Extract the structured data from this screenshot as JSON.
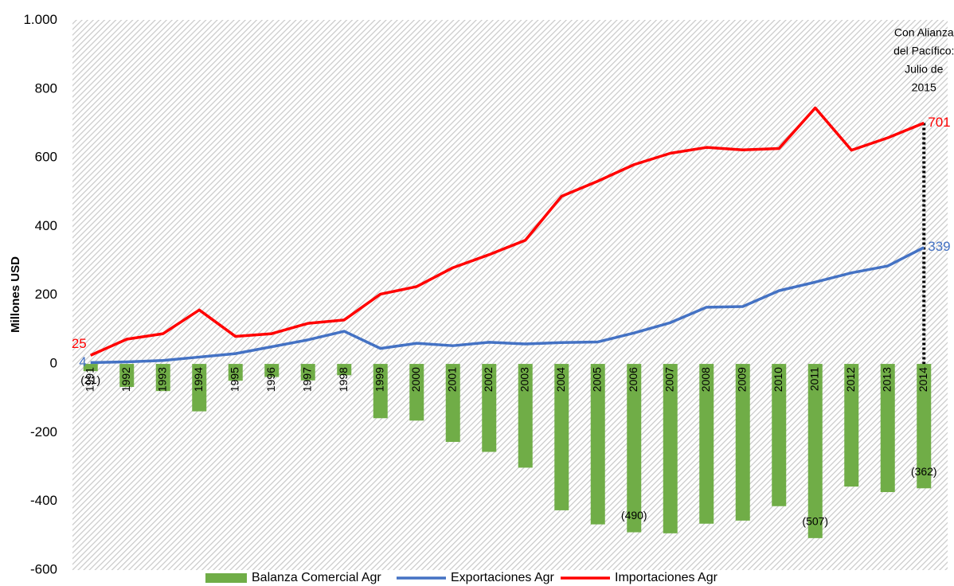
{
  "chart_data": {
    "type": "bar_line",
    "y_label": "Millones USD",
    "categories": [
      "1991",
      "1992",
      "1993",
      "1994",
      "1995",
      "1996",
      "1997",
      "1998",
      "1999",
      "2000",
      "2001",
      "2002",
      "2003",
      "2004",
      "2005",
      "2006",
      "2007",
      "2008",
      "2009",
      "2010",
      "2011",
      "2012",
      "2013",
      "2014"
    ],
    "series": [
      {
        "name": "Balanza Comercial Agr",
        "kind": "bar",
        "color": "#70ad47",
        "values": [
          -21,
          -67,
          -79,
          -138,
          -49,
          -38,
          -48,
          -33,
          -158,
          -165,
          -227,
          -256,
          -302,
          -426,
          -467,
          -490,
          -493,
          -465,
          -456,
          -414,
          -507,
          -357,
          -373,
          -362
        ],
        "value_labels": [
          "(21)",
          null,
          null,
          null,
          null,
          null,
          null,
          null,
          null,
          null,
          null,
          null,
          null,
          null,
          null,
          "(490)",
          null,
          null,
          null,
          null,
          "(507)",
          null,
          null,
          "(362)"
        ]
      },
      {
        "name": "Exportaciones Agr",
        "kind": "line",
        "color": "#4472c4",
        "values": [
          4,
          6,
          10,
          20,
          30,
          50,
          70,
          95,
          45,
          60,
          53,
          63,
          58,
          62,
          64,
          90,
          120,
          165,
          167,
          213,
          238,
          265,
          285,
          339
        ],
        "value_labels": [
          "4",
          null,
          null,
          null,
          null,
          null,
          null,
          null,
          null,
          null,
          null,
          null,
          null,
          null,
          null,
          null,
          null,
          null,
          null,
          null,
          null,
          null,
          null,
          "339"
        ]
      },
      {
        "name": "Importaciones Agr",
        "kind": "line",
        "color": "#ff0000",
        "values": [
          25,
          72,
          88,
          157,
          80,
          88,
          118,
          128,
          203,
          225,
          280,
          318,
          360,
          488,
          532,
          580,
          613,
          630,
          623,
          627,
          745,
          622,
          658,
          701
        ],
        "value_labels": [
          "25",
          null,
          null,
          null,
          null,
          null,
          null,
          null,
          null,
          null,
          null,
          null,
          null,
          null,
          null,
          null,
          null,
          null,
          null,
          null,
          null,
          null,
          null,
          "701"
        ]
      }
    ],
    "annotation": [
      "Con Alianza",
      "del Pacífico:",
      "Julio de",
      "2015"
    ],
    "ylim": [
      -600,
      1000
    ],
    "yticks": [
      -600,
      -400,
      -200,
      0,
      200,
      400,
      600,
      800,
      {
        "value": 1000,
        "label": "1.000"
      }
    ],
    "legend": "bottom"
  }
}
